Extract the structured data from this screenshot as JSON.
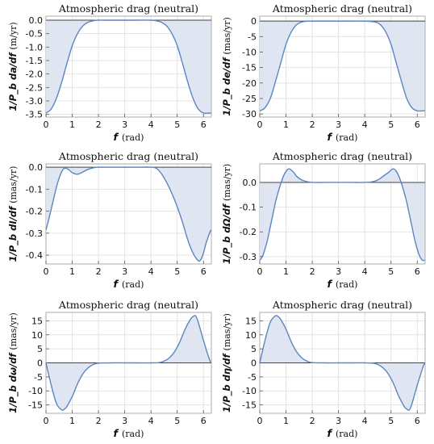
{
  "chart_data": [
    {
      "type": "area",
      "title": "Atmospheric drag (neutral)",
      "xlabel": "f",
      "xunit": "(rad)",
      "ylabel": "1/P_b da/df",
      "yunit": "(m/yr)",
      "xlim": [
        0,
        6.3
      ],
      "ylim": [
        -3.6,
        0.15
      ],
      "xticks": [
        0,
        1,
        2,
        3,
        4,
        5,
        6
      ],
      "yticks": [
        0.0,
        -0.5,
        -1.0,
        -1.5,
        -2.0,
        -2.5,
        -3.0,
        -3.5
      ],
      "ytick_labels": [
        "0.0",
        "-0.5",
        "-1.0",
        "-1.5",
        "-2.0",
        "-2.5",
        "-3.0",
        "-3.5"
      ],
      "x": [
        0,
        0.2,
        0.4,
        0.6,
        0.8,
        1.0,
        1.2,
        1.4,
        1.6,
        1.8,
        2.0,
        2.2,
        2.5,
        3.0,
        3.5,
        4.0,
        4.2,
        4.4,
        4.6,
        4.8,
        5.0,
        5.2,
        5.4,
        5.6,
        5.8,
        6.0,
        6.2,
        6.283
      ],
      "values": [
        -3.45,
        -3.3,
        -2.9,
        -2.3,
        -1.6,
        -0.95,
        -0.5,
        -0.22,
        -0.08,
        -0.02,
        0,
        0,
        0,
        0,
        0,
        0,
        -0.02,
        -0.08,
        -0.22,
        -0.5,
        -0.95,
        -1.6,
        -2.3,
        -2.9,
        -3.3,
        -3.45,
        -3.45,
        -3.45
      ]
    },
    {
      "type": "area",
      "title": "Atmospheric drag (neutral)",
      "xlabel": "f",
      "xunit": "(rad)",
      "ylabel": "1/P_b de/df",
      "yunit": "(mas/yr)",
      "xlim": [
        0,
        6.3
      ],
      "ylim": [
        -31,
        1.6
      ],
      "xticks": [
        0,
        1,
        2,
        3,
        4,
        5,
        6
      ],
      "yticks": [
        0,
        -5,
        -10,
        -15,
        -20,
        -25,
        -30
      ],
      "ytick_labels": [
        "0",
        "-5",
        "-10",
        "-15",
        "-20",
        "-25",
        "-30"
      ],
      "x": [
        0,
        0.2,
        0.4,
        0.6,
        0.8,
        1.0,
        1.2,
        1.4,
        1.6,
        1.8,
        2.0,
        2.5,
        3.0,
        3.5,
        4.0,
        4.4,
        4.6,
        4.8,
        5.0,
        5.2,
        5.4,
        5.6,
        5.8,
        6.0,
        6.2,
        6.283
      ],
      "values": [
        -29,
        -28,
        -25,
        -19.5,
        -13.5,
        -7.5,
        -3.5,
        -1.2,
        -0.3,
        -0.05,
        0,
        0,
        0,
        0,
        0,
        -0.3,
        -1.2,
        -3.5,
        -7.5,
        -13.5,
        -19.5,
        -25,
        -28,
        -29,
        -29,
        -29
      ]
    },
    {
      "type": "area",
      "title": "Atmospheric drag (neutral)",
      "xlabel": "f",
      "xunit": "(rad)",
      "ylabel": "1/P_b dI/df",
      "yunit": "(mas/yr)",
      "xlim": [
        0,
        6.3
      ],
      "ylim": [
        -0.44,
        0.015
      ],
      "xticks": [
        0,
        1,
        2,
        3,
        4,
        5,
        6
      ],
      "yticks": [
        0.0,
        -0.1,
        -0.2,
        -0.3,
        -0.4
      ],
      "ytick_labels": [
        "0.0",
        "-0.1",
        "-0.2",
        "-0.3",
        "-0.4"
      ],
      "x": [
        0,
        0.1,
        0.2,
        0.3,
        0.4,
        0.5,
        0.6,
        0.7,
        0.85,
        1.0,
        1.2,
        1.4,
        1.6,
        1.8,
        2.0,
        2.5,
        3.0,
        3.5,
        4.0,
        4.2,
        4.4,
        4.6,
        4.8,
        5.0,
        5.2,
        5.4,
        5.6,
        5.8,
        5.9,
        6.0,
        6.1,
        6.2,
        6.283
      ],
      "values": [
        -0.285,
        -0.24,
        -0.19,
        -0.14,
        -0.09,
        -0.05,
        -0.02,
        -0.005,
        -0.01,
        -0.025,
        -0.032,
        -0.022,
        -0.01,
        -0.003,
        0,
        0,
        0,
        0,
        0,
        -0.005,
        -0.03,
        -0.07,
        -0.12,
        -0.18,
        -0.25,
        -0.33,
        -0.39,
        -0.425,
        -0.42,
        -0.39,
        -0.345,
        -0.31,
        -0.285
      ]
    },
    {
      "type": "area",
      "title": "Atmospheric drag (neutral)",
      "xlabel": "f",
      "xunit": "(rad)",
      "ylabel": "1/P_b dΩ/df",
      "yunit": "(mas/yr)",
      "xlim": [
        0,
        6.3
      ],
      "ylim": [
        -0.33,
        0.075
      ],
      "xticks": [
        0,
        1,
        2,
        3,
        4,
        5,
        6
      ],
      "yticks": [
        0.0,
        -0.1,
        -0.2,
        -0.3
      ],
      "ytick_labels": [
        "0.0",
        "-0.1",
        "-0.2",
        "-0.3"
      ],
      "x": [
        0,
        0.1,
        0.2,
        0.3,
        0.4,
        0.5,
        0.6,
        0.7,
        0.8,
        0.9,
        1.0,
        1.1,
        1.2,
        1.3,
        1.4,
        1.6,
        1.8,
        2.0,
        2.5,
        3.0,
        3.5,
        4.0,
        4.3,
        4.5,
        4.7,
        4.9,
        5.0,
        5.1,
        5.2,
        5.3,
        5.4,
        5.5,
        5.6,
        5.7,
        5.8,
        5.9,
        6.0,
        6.1,
        6.2,
        6.283
      ],
      "values": [
        -0.315,
        -0.3,
        -0.27,
        -0.23,
        -0.18,
        -0.13,
        -0.08,
        -0.04,
        -0.005,
        0.025,
        0.045,
        0.055,
        0.05,
        0.04,
        0.025,
        0.01,
        0.003,
        0,
        0,
        0,
        0,
        0,
        0.003,
        0.01,
        0.025,
        0.04,
        0.05,
        0.055,
        0.045,
        0.025,
        -0.005,
        -0.04,
        -0.08,
        -0.13,
        -0.18,
        -0.23,
        -0.27,
        -0.3,
        -0.315,
        -0.315
      ]
    },
    {
      "type": "area",
      "title": "Atmospheric drag (neutral)",
      "xlabel": "f",
      "xunit": "(rad)",
      "ylabel": "1/P_b dω/df",
      "yunit": "(mas/yr)",
      "xlim": [
        0,
        6.3
      ],
      "ylim": [
        -18,
        18
      ],
      "xticks": [
        0,
        1,
        2,
        3,
        4,
        5,
        6
      ],
      "yticks": [
        15,
        10,
        5,
        0,
        -5,
        -10,
        -15
      ],
      "ytick_labels": [
        "15",
        "10",
        "5",
        "0",
        "-5",
        "-10",
        "-15"
      ],
      "x": [
        0,
        0.2,
        0.4,
        0.6,
        0.7,
        0.8,
        1.0,
        1.2,
        1.4,
        1.6,
        1.8,
        2.0,
        2.5,
        3.0,
        3.5,
        4.0,
        4.3,
        4.5,
        4.7,
        4.9,
        5.1,
        5.3,
        5.5,
        5.6,
        5.7,
        5.8,
        6.0,
        6.2,
        6.283
      ],
      "values": [
        0,
        -8,
        -14.5,
        -16.8,
        -16.5,
        -15.5,
        -12,
        -7.5,
        -4,
        -1.8,
        -0.6,
        -0.1,
        0,
        0,
        0,
        0,
        0.1,
        0.6,
        1.8,
        4,
        7.5,
        12,
        15.5,
        16.5,
        16.8,
        14.5,
        8,
        2,
        0
      ]
    },
    {
      "type": "area",
      "title": "Atmospheric drag (neutral)",
      "xlabel": "f",
      "xunit": "(rad)",
      "ylabel": "1/P_b dη/df",
      "yunit": "(mas/yr)",
      "xlim": [
        0,
        6.3
      ],
      "ylim": [
        -18,
        18
      ],
      "xticks": [
        0,
        1,
        2,
        3,
        4,
        5,
        6
      ],
      "yticks": [
        15,
        10,
        5,
        0,
        -5,
        -10,
        -15
      ],
      "ytick_labels": [
        "15",
        "10",
        "5",
        "0",
        "-5",
        "-10",
        "-15"
      ],
      "x": [
        0,
        0.2,
        0.4,
        0.6,
        0.7,
        0.8,
        1.0,
        1.2,
        1.4,
        1.6,
        1.8,
        2.0,
        2.5,
        3.0,
        3.5,
        4.0,
        4.3,
        4.5,
        4.7,
        4.9,
        5.1,
        5.3,
        5.5,
        5.6,
        5.7,
        5.8,
        6.0,
        6.2,
        6.283
      ],
      "values": [
        0,
        8,
        14.5,
        16.8,
        16.5,
        15.5,
        12,
        7.5,
        4,
        1.8,
        0.6,
        0.1,
        0,
        0,
        0,
        0,
        -0.1,
        -0.6,
        -1.8,
        -4,
        -7.5,
        -12,
        -15.5,
        -16.5,
        -16.8,
        -14.5,
        -8,
        -2,
        0
      ]
    }
  ],
  "style": {
    "line_color": "#5a86c2",
    "fill_color": "#dfe6f1",
    "grid_color": "#e3e3e3",
    "axis_color": "#444444"
  }
}
